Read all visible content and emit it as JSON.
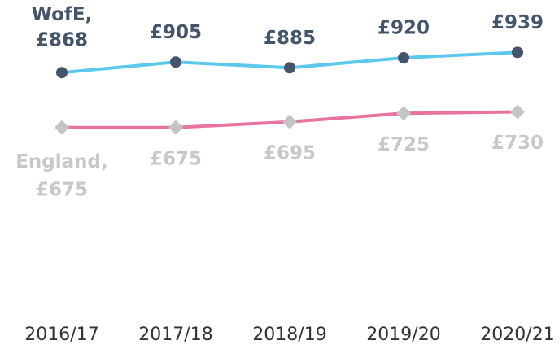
{
  "chart_data": {
    "type": "line",
    "categories": [
      "2016/17",
      "2017/18",
      "2018/19",
      "2019/20",
      "2020/21"
    ],
    "series": [
      {
        "name": "WofE",
        "color": "#5bc8ec",
        "marker_color": "#44546a",
        "marker": "circle",
        "label_color": "#44546a",
        "label_position": "above",
        "values": [
          868,
          905,
          885,
          920,
          939
        ],
        "value_labels": [
          "£868",
          "£905",
          "£885",
          "£920",
          "£939"
        ]
      },
      {
        "name": "England",
        "color": "#e8739e",
        "marker_color": "#c4c4c4",
        "marker": "diamond",
        "label_color": "#c8c8c8",
        "label_position": "below",
        "values": [
          675,
          675,
          695,
          725,
          730
        ],
        "value_labels": [
          "£675",
          "£675",
          "£695",
          "£725",
          "£730"
        ]
      }
    ],
    "ylim": [
      0,
      1100
    ]
  }
}
